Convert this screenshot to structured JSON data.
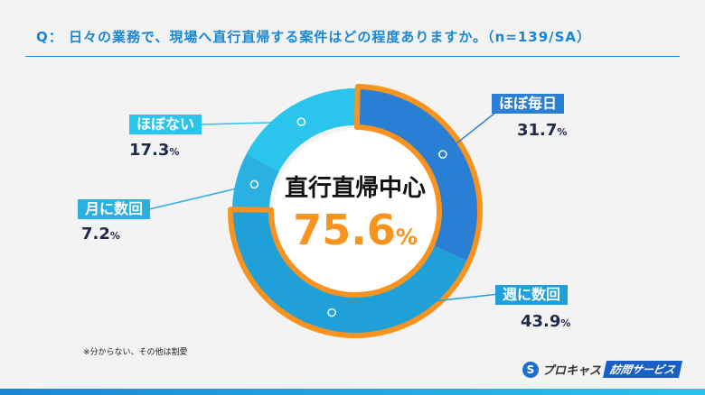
{
  "header": {
    "question": "Q： 日々の業務で、現場へ直行直帰する案件はどの程度ありますか。（n=139/SA）"
  },
  "chart_data": {
    "type": "pie",
    "donut": true,
    "categories": [
      "ほぼ毎日",
      "週に数回",
      "月に数回",
      "ほぼない"
    ],
    "values": [
      31.7,
      43.9,
      7.2,
      17.3
    ],
    "value_labels": [
      "31.7",
      "43.9",
      "7.2",
      "17.3"
    ],
    "unit": "%",
    "colors": [
      "#2a7fd4",
      "#20a0d8",
      "#2ab1e2",
      "#2ac4ec"
    ],
    "highlight": {
      "label": "直行直帰中心",
      "value": "75.6",
      "unit": "%",
      "color": "#f7931e",
      "categories": [
        "ほぼ毎日",
        "週に数回"
      ]
    }
  },
  "footnote": "※分からない、その他は割愛",
  "logo": {
    "mark": "S",
    "name": "プロキャス",
    "badge": "訪問サービス"
  }
}
